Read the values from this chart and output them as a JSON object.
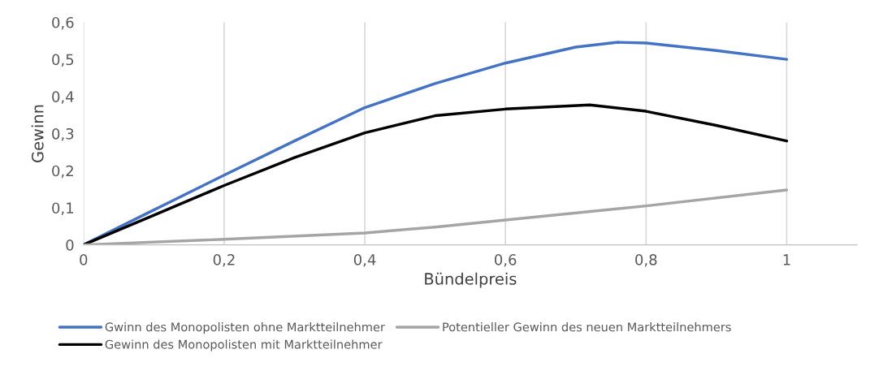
{
  "chart_data": {
    "type": "line",
    "xlabel": "Bündelpreis",
    "ylabel": "Gewinn",
    "xlim": [
      0,
      1.1
    ],
    "xticks": [
      0,
      {
        "value": 0.2,
        "label": "0,2"
      },
      {
        "value": 0.4,
        "label": "0,4"
      },
      {
        "value": 0.6,
        "label": "0,6"
      },
      {
        "value": 0.8,
        "label": "0,8"
      },
      1
    ],
    "ylim": [
      0,
      0.6
    ],
    "yticks": [
      0,
      {
        "value": 0.1,
        "label": "0,1"
      },
      {
        "value": 0.2,
        "label": "0,2"
      },
      {
        "value": 0.3,
        "label": "0,3"
      },
      {
        "value": 0.4,
        "label": "0,4"
      },
      {
        "value": 0.5,
        "label": "0,5"
      },
      {
        "value": 0.6,
        "label": "0,6"
      }
    ],
    "grid": "x",
    "legend": "bottom",
    "marker": "none",
    "line_style": "solid",
    "series": [
      {
        "name": "Gwinn des Monopolisten ohne Marktteilnehmer",
        "color": "#4472c4",
        "x": [
          0,
          0.1,
          0.2,
          0.3,
          0.4,
          0.5,
          0.6,
          0.7,
          0.76,
          0.8,
          0.9,
          1
        ],
        "values": [
          0,
          0.094,
          0.188,
          0.28,
          0.37,
          0.435,
          0.49,
          0.533,
          0.546,
          0.544,
          0.524,
          0.5
        ]
      },
      {
        "name": "Gewinn des Monopolisten mit Marktteilnehmer",
        "color": "#000000",
        "x": [
          0,
          0.1,
          0.2,
          0.3,
          0.4,
          0.5,
          0.6,
          0.72,
          0.8,
          0.9,
          1
        ],
        "values": [
          0,
          0.08,
          0.16,
          0.235,
          0.302,
          0.348,
          0.366,
          0.377,
          0.36,
          0.322,
          0.28
        ]
      },
      {
        "name": "Potentieller Gewinn des neuen Marktteilnehmers",
        "color": "#a5a5a5",
        "x": [
          0,
          0.2,
          0.4,
          0.5,
          0.6,
          0.8,
          1
        ],
        "values": [
          0,
          0.015,
          0.032,
          0.048,
          0.067,
          0.105,
          0.148
        ]
      }
    ]
  }
}
